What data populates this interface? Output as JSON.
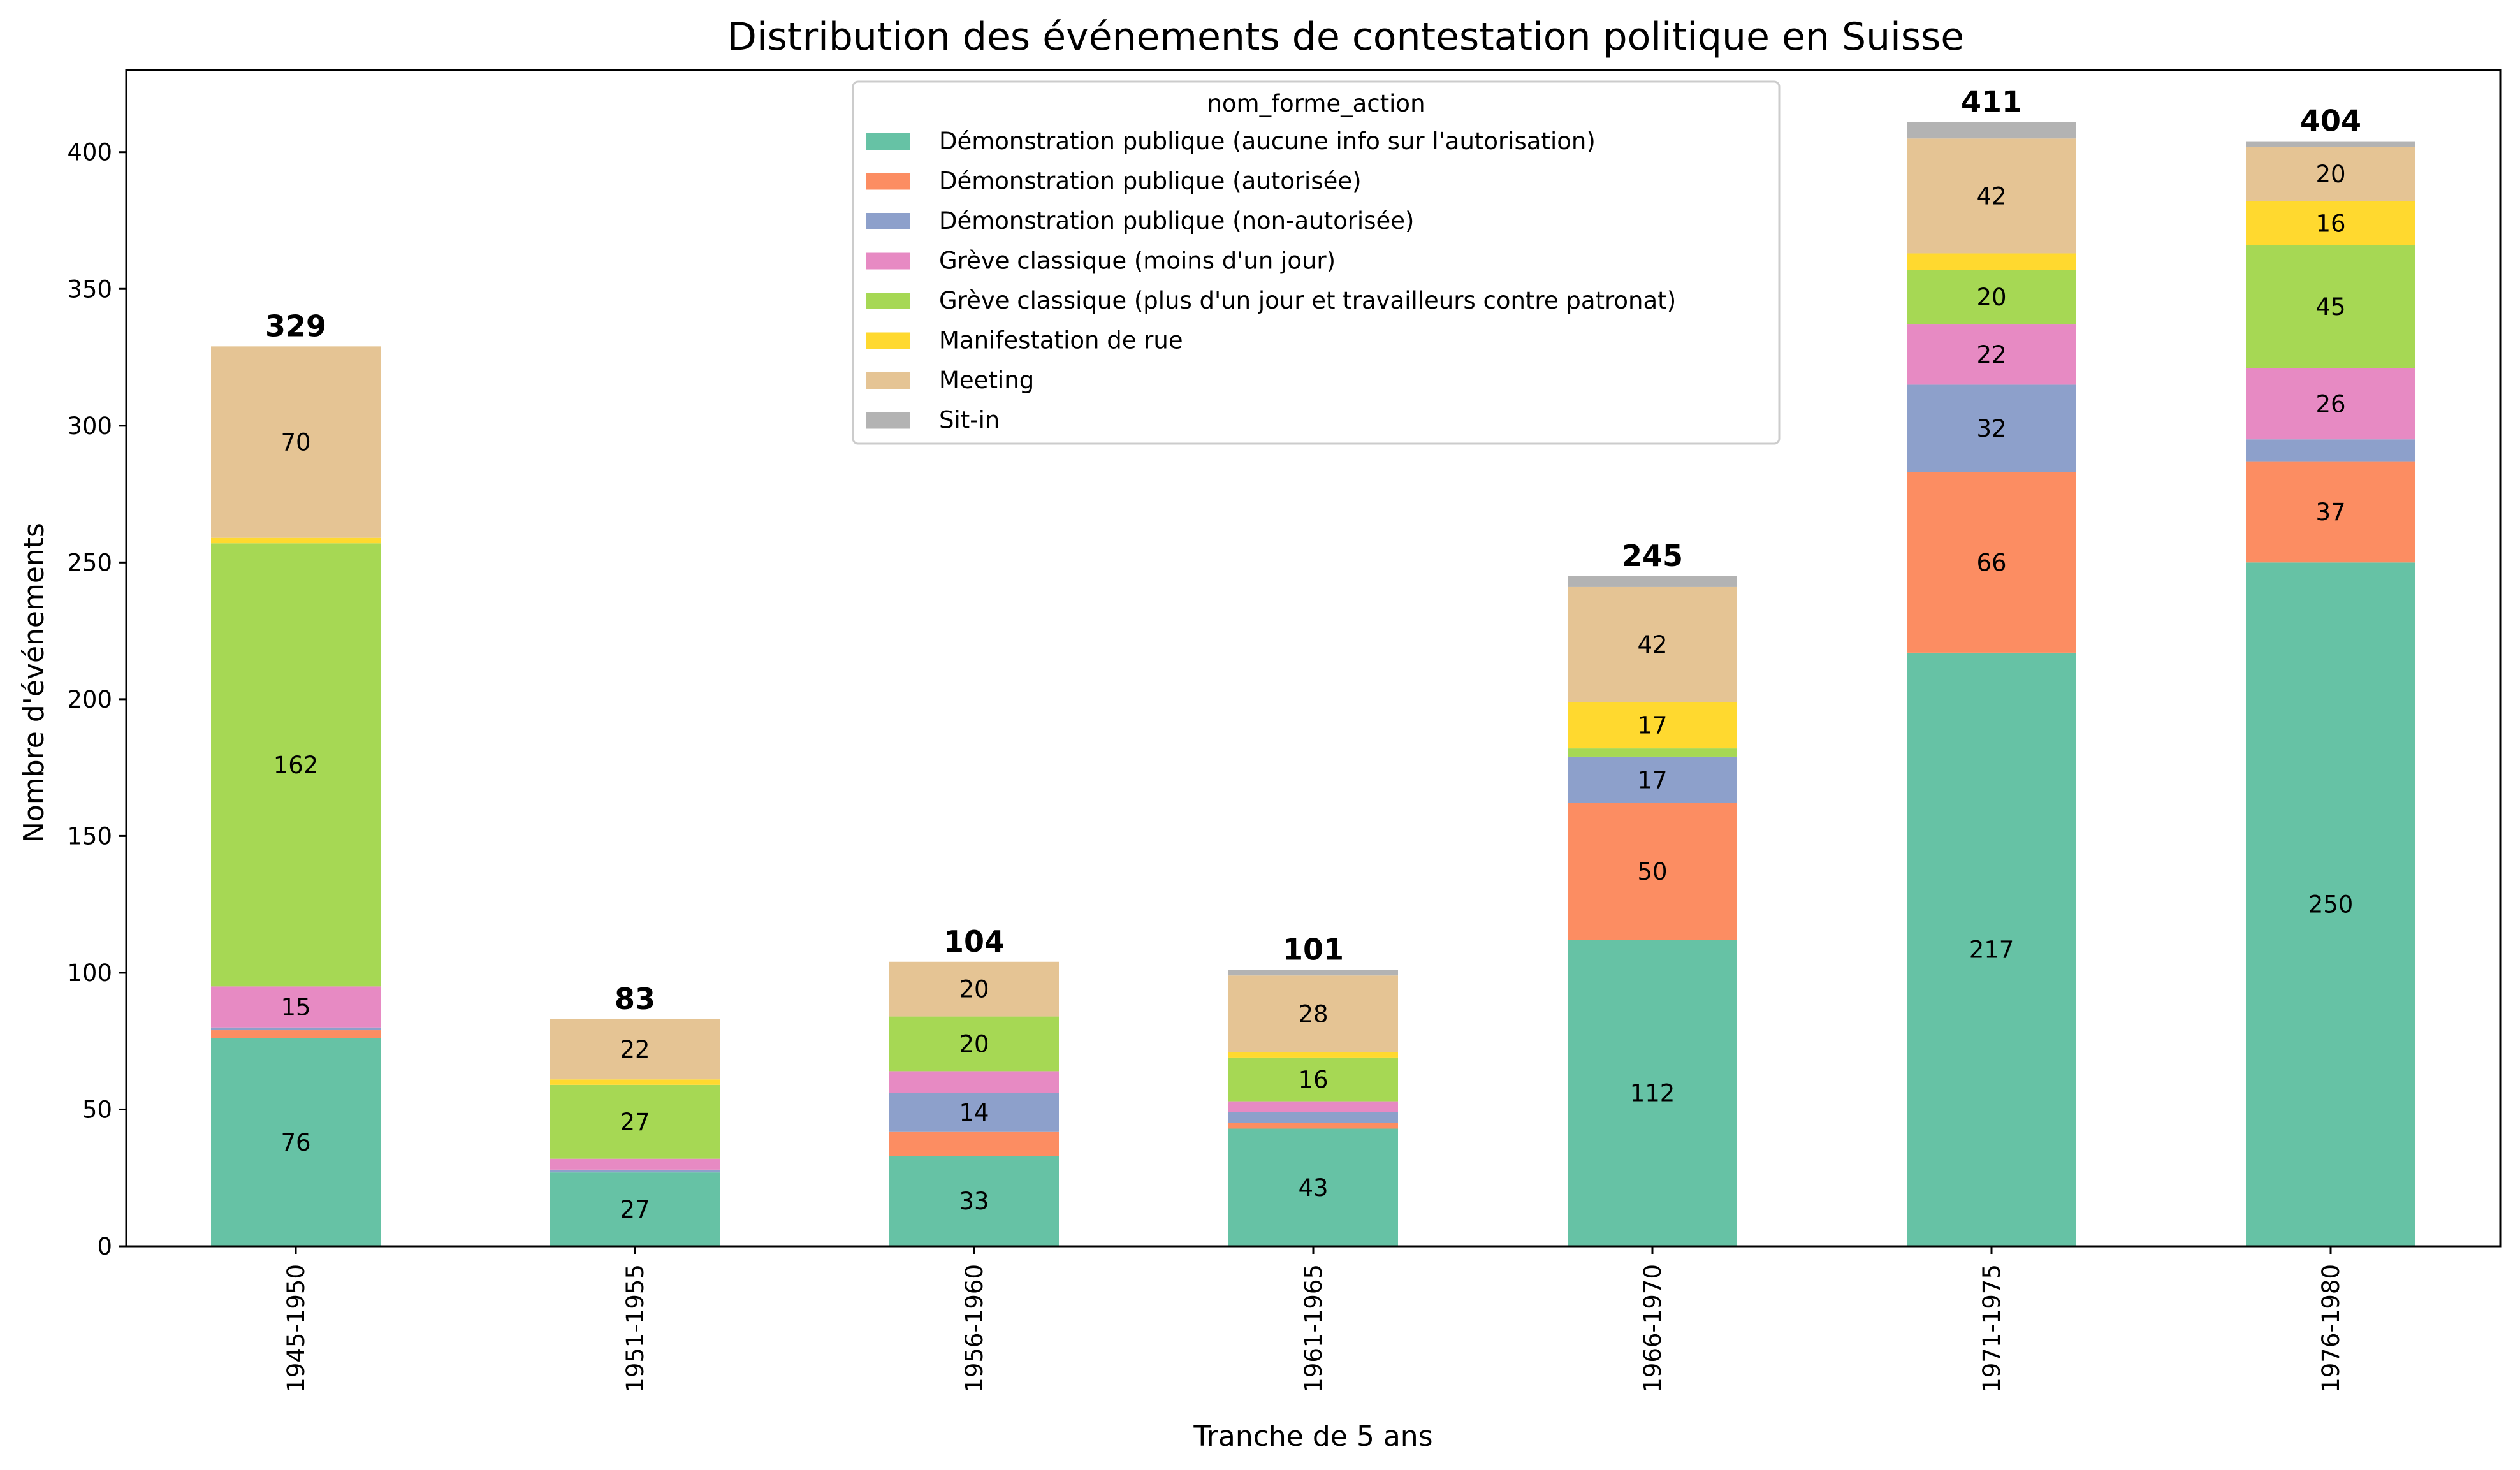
{
  "chart_data": {
    "type": "bar",
    "stacked": true,
    "title": "Distribution des événements de contestation politique en Suisse",
    "xlabel": "Tranche de 5 ans",
    "ylabel": "Nombre d'événements",
    "ylim": [
      0,
      430
    ],
    "yticks": [
      0,
      50,
      100,
      150,
      200,
      250,
      300,
      350,
      400
    ],
    "grid": false,
    "legend_position": "top-center",
    "legend_title": "nom_forme_action",
    "categories": [
      "1945-1950",
      "1951-1955",
      "1956-1960",
      "1961-1965",
      "1966-1970",
      "1971-1975",
      "1976-1980"
    ],
    "totals": [
      329,
      83,
      104,
      101,
      245,
      411,
      404
    ],
    "series": [
      {
        "name": "Démonstration publique (aucune info sur l'autorisation)",
        "color": "#66c2a5",
        "values": [
          76,
          27,
          33,
          43,
          112,
          217,
          250
        ]
      },
      {
        "name": "Démonstration publique (autorisée)",
        "color": "#fc8d62",
        "values": [
          3,
          0,
          9,
          2,
          50,
          66,
          37
        ]
      },
      {
        "name": "Démonstration publique (non-autorisée)",
        "color": "#8da0cb",
        "values": [
          1,
          1,
          14,
          4,
          17,
          32,
          8
        ]
      },
      {
        "name": "Grève classique (moins d'un jour)",
        "color": "#e78ac3",
        "values": [
          15,
          4,
          8,
          4,
          0,
          22,
          26
        ]
      },
      {
        "name": "Grève classique (plus d'un jour et travailleurs contre patronat)",
        "color": "#a6d854",
        "values": [
          162,
          27,
          20,
          16,
          3,
          20,
          45
        ]
      },
      {
        "name": "Manifestation de rue",
        "color": "#ffd92f",
        "values": [
          2,
          2,
          0,
          2,
          17,
          6,
          16
        ]
      },
      {
        "name": "Meeting",
        "color": "#e5c494",
        "values": [
          70,
          22,
          20,
          28,
          42,
          42,
          20
        ]
      },
      {
        "name": "Sit-in",
        "color": "#b3b3b3",
        "values": [
          0,
          0,
          0,
          2,
          4,
          6,
          2
        ]
      }
    ]
  }
}
